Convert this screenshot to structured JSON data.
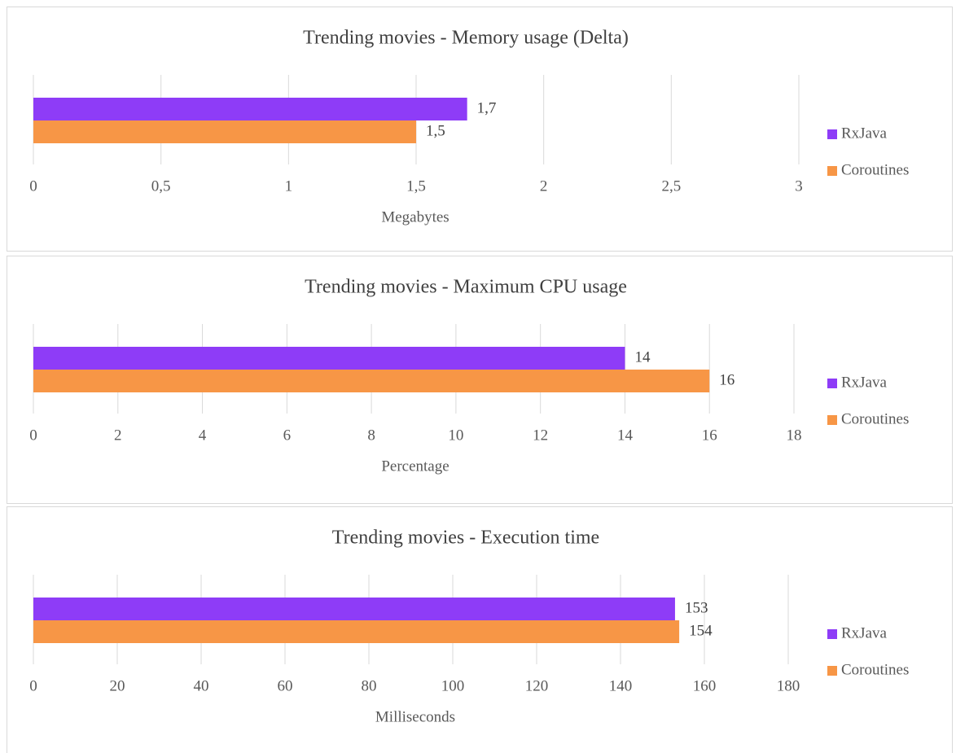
{
  "chart_data": [
    {
      "type": "bar",
      "title": "Trending movies - Memory usage (Delta)",
      "x_label": "Megabytes",
      "series": [
        {
          "name": "RxJava",
          "color": "#8e3cf7",
          "values": [
            1.7
          ],
          "value_labels": [
            "1,7"
          ]
        },
        {
          "name": "Coroutines",
          "color": "#f79646",
          "values": [
            1.5
          ],
          "value_labels": [
            "1,5"
          ]
        }
      ],
      "xlim": [
        0,
        3
      ],
      "xticks": [
        0,
        {
          "value": 0.5,
          "label": "0,5"
        },
        1,
        {
          "value": 1.5,
          "label": "1,5"
        },
        2,
        {
          "value": 2.5,
          "label": "2,5"
        },
        3
      ],
      "grid": true,
      "legend": "right"
    },
    {
      "type": "bar",
      "title": "Trending movies - Maximum CPU usage",
      "x_label": "Percentage",
      "series": [
        {
          "name": "RxJava",
          "color": "#8e3cf7",
          "values": [
            14
          ]
        },
        {
          "name": "Coroutines",
          "color": "#f79646",
          "values": [
            16
          ]
        }
      ],
      "xlim": [
        0,
        18
      ],
      "xticks": [
        0,
        2,
        4,
        6,
        8,
        10,
        12,
        14,
        16,
        18
      ],
      "grid": true,
      "legend": "right"
    },
    {
      "type": "bar",
      "title": "Trending movies - Execution time",
      "x_label": "Milliseconds",
      "series": [
        {
          "name": "RxJava",
          "color": "#8e3cf7",
          "values": [
            153
          ]
        },
        {
          "name": "Coroutines",
          "color": "#f79646",
          "values": [
            154
          ]
        }
      ],
      "xlim": [
        0,
        180
      ],
      "xticks": [
        0,
        20,
        40,
        60,
        80,
        100,
        120,
        140,
        160,
        180
      ],
      "grid": true,
      "legend": "right"
    }
  ]
}
